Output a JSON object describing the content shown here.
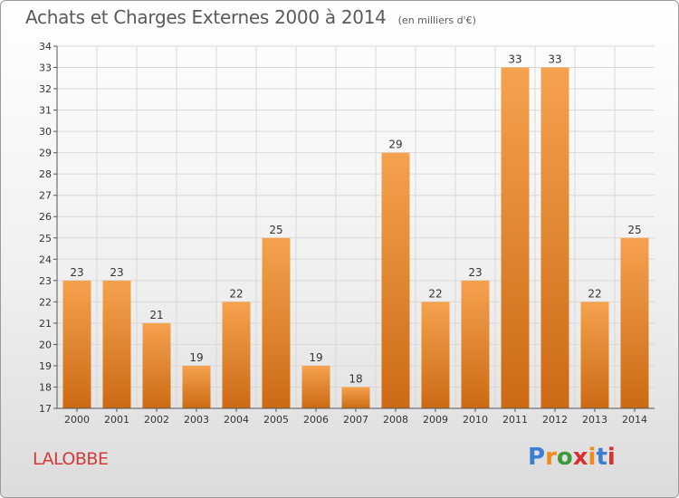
{
  "header": {
    "title": "Achats et Charges Externes 2000 à 2014",
    "unit": "(en milliers d'€)"
  },
  "footer": {
    "commune": "LALOBBE",
    "logo_letters": [
      "P",
      "r",
      "o",
      "x",
      "i",
      "t",
      "i"
    ],
    "logo_colors": [
      "#3b7fd0",
      "#f08a1c",
      "#3b9a3a",
      "#d93030",
      "#f08a1c",
      "#3b7fd0",
      "#d93030"
    ]
  },
  "chart_data": {
    "type": "bar",
    "title": "Achats et Charges Externes 2000 à 2014",
    "subtitle": "(en milliers d'€)",
    "categories": [
      "2000",
      "2001",
      "2002",
      "2003",
      "2004",
      "2005",
      "2006",
      "2007",
      "2008",
      "2009",
      "2010",
      "2011",
      "2012",
      "2013",
      "2014"
    ],
    "values": [
      23,
      23,
      21,
      19,
      22,
      25,
      19,
      18,
      29,
      22,
      23,
      33,
      33,
      22,
      25
    ],
    "ylim": [
      17,
      34
    ],
    "yticks": [
      17,
      18,
      19,
      20,
      21,
      22,
      23,
      24,
      25,
      26,
      27,
      28,
      29,
      30,
      31,
      32,
      33,
      34
    ],
    "grid": true,
    "bar_color_top": "#f5a24e",
    "bar_color_bottom": "#cc6a14",
    "grid_color": "#d8d8d8"
  }
}
